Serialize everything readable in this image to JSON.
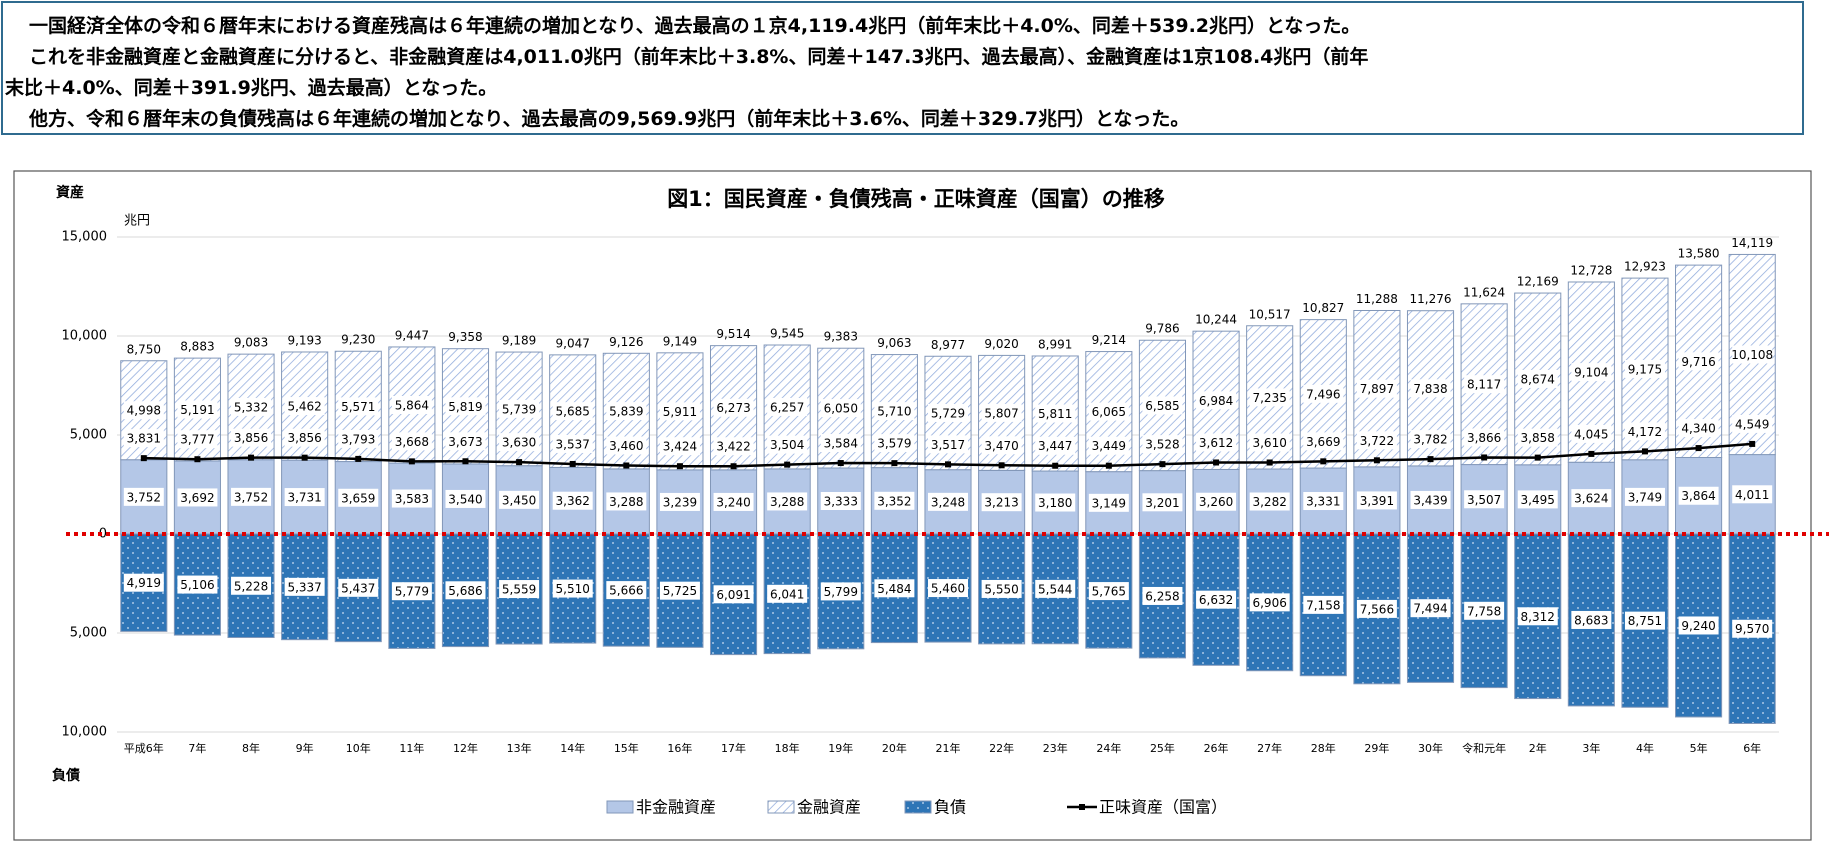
{
  "text_box": {
    "lines": [
      "一国経済全体の令和６暦年末における資産残高は６年連続の増加となり、過去最高の１京4,119.4兆円（前年末比＋4.0%、同差＋539.2兆円）となった。",
      "これを非金融資産と金融資産に分けると、非金融資産は4,011.0兆円（前年末比＋3.8%、同差＋147.3兆円、過去最高）、金融資産は1京108.4兆円（前年",
      "末比＋4.0%、同差＋391.9兆円、過去最高）となった。",
      "他方、令和６暦年末の負債残高は６年連続の増加となり、過去最高の9,569.9兆円（前年末比＋3.6%、同差＋329.7兆円）となった。"
    ]
  },
  "chart_data": {
    "type": "bar",
    "stacked": true,
    "title": "図1：国民資産・負債残高・正味資産（国富）の推移",
    "y_label": "資産",
    "y_unit": "兆円",
    "y2_label": "負債",
    "categories": [
      "平成6年",
      "7年",
      "8年",
      "9年",
      "10年",
      "11年",
      "12年",
      "13年",
      "14年",
      "15年",
      "16年",
      "17年",
      "18年",
      "19年",
      "20年",
      "21年",
      "22年",
      "23年",
      "24年",
      "25年",
      "26年",
      "27年",
      "28年",
      "29年",
      "30年",
      "令和元年",
      "2年",
      "3年",
      "4年",
      "5年",
      "6年"
    ],
    "series": [
      {
        "name": "非金融資産",
        "color": "#b4c7e7",
        "pattern": "solid",
        "values": [
          3752,
          3692,
          3752,
          3731,
          3659,
          3583,
          3540,
          3450,
          3362,
          3288,
          3239,
          3240,
          3288,
          3333,
          3352,
          3248,
          3213,
          3180,
          3149,
          3201,
          3260,
          3282,
          3331,
          3391,
          3439,
          3507,
          3495,
          3624,
          3749,
          3864,
          4011
        ],
        "value_labels": [
          "3,752",
          "3,692",
          "3,752",
          "3,731",
          "3,659",
          "3,583",
          "3,540",
          "3,450",
          "3,362",
          "3,288",
          "3,239",
          "3,240",
          "3,288",
          "3,333",
          "3,352",
          "3,248",
          "3,213",
          "3,180",
          "3,149",
          "3,201",
          "3,260",
          "3,282",
          "3,331",
          "3,391",
          "3,439",
          "3,507",
          "3,495",
          "3,624",
          "3,749",
          "3,864",
          "4,011"
        ]
      },
      {
        "name": "金融資産",
        "color": "#8faadc",
        "pattern": "hatch",
        "values": [
          4998,
          5191,
          5332,
          5462,
          5571,
          5864,
          5819,
          5739,
          5685,
          5839,
          5911,
          6273,
          6257,
          6050,
          5710,
          5729,
          5807,
          5811,
          6065,
          6585,
          6984,
          7235,
          7496,
          7897,
          7838,
          8117,
          8674,
          9104,
          9175,
          9716,
          10108
        ],
        "value_labels": [
          "4,998",
          "5,191",
          "5,332",
          "5,462",
          "5,571",
          "5,864",
          "5,819",
          "5,739",
          "5,685",
          "5,839",
          "5,911",
          "6,273",
          "6,257",
          "6,050",
          "5,710",
          "5,729",
          "5,807",
          "5,811",
          "6,065",
          "6,585",
          "6,984",
          "7,235",
          "7,496",
          "7,897",
          "7,838",
          "8,117",
          "8,674",
          "9,104",
          "9,175",
          "9,716",
          "10,108"
        ]
      },
      {
        "name": "負債",
        "color": "#2e75b6",
        "pattern": "dots",
        "axis": "y2",
        "values": [
          4919,
          5106,
          5228,
          5337,
          5437,
          5779,
          5686,
          5559,
          5510,
          5666,
          5725,
          6091,
          6041,
          5799,
          5484,
          5460,
          5550,
          5544,
          5765,
          6258,
          6632,
          6906,
          7158,
          7566,
          7494,
          7758,
          8312,
          8683,
          8751,
          9240,
          9570
        ],
        "value_labels": [
          "4,919",
          "5,106",
          "5,228",
          "5,337",
          "5,437",
          "5,779",
          "5,686",
          "5,559",
          "5,510",
          "5,666",
          "5,725",
          "6,091",
          "6,041",
          "5,799",
          "5,484",
          "5,460",
          "5,550",
          "5,544",
          "5,765",
          "6,258",
          "6,632",
          "6,906",
          "7,158",
          "7,566",
          "7,494",
          "7,758",
          "8,312",
          "8,683",
          "8,751",
          "9,240",
          "9,570"
        ]
      },
      {
        "name": "正味資産（国富）",
        "type": "line",
        "color": "#000000",
        "values": [
          3831,
          3777,
          3856,
          3856,
          3793,
          3668,
          3673,
          3630,
          3537,
          3460,
          3424,
          3422,
          3504,
          3584,
          3579,
          3517,
          3470,
          3447,
          3449,
          3528,
          3612,
          3610,
          3669,
          3722,
          3782,
          3866,
          3858,
          4045,
          4172,
          4340,
          4549
        ],
        "value_labels": [
          "3,831",
          "3,777",
          "3,856",
          "3,856",
          "3,793",
          "3,668",
          "3,673",
          "3,630",
          "3,537",
          "3,460",
          "3,424",
          "3,422",
          "3,504",
          "3,584",
          "3,579",
          "3,517",
          "3,470",
          "3,447",
          "3,449",
          "3,528",
          "3,612",
          "3,610",
          "3,669",
          "3,722",
          "3,782",
          "3,866",
          "3,858",
          "4,045",
          "4,172",
          "4,340",
          "4,549"
        ]
      }
    ],
    "totals": {
      "values": [
        8750,
        8883,
        9083,
        9193,
        9230,
        9447,
        9358,
        9189,
        9047,
        9126,
        9149,
        9514,
        9545,
        9383,
        9063,
        8977,
        9020,
        8991,
        9214,
        9786,
        10244,
        10517,
        10827,
        11288,
        11276,
        11624,
        12169,
        12728,
        12923,
        13580,
        14119
      ],
      "value_labels": [
        "8,750",
        "8,883",
        "9,083",
        "9,193",
        "9,230",
        "9,447",
        "9,358",
        "9,189",
        "9,047",
        "9,126",
        "9,149",
        "9,514",
        "9,545",
        "9,383",
        "9,063",
        "8,977",
        "9,020",
        "8,991",
        "9,214",
        "9,786",
        "10,244",
        "10,517",
        "10,827",
        "11,288",
        "11,276",
        "11,624",
        "12,169",
        "12,728",
        "12,923",
        "13,580",
        "14,119"
      ]
    },
    "ylim": [
      -10000,
      15000
    ],
    "yticks": [
      0,
      {
        "value": 5000,
        "label": "5,000"
      },
      {
        "value": 10000,
        "label": "10,000"
      },
      {
        "value": 15000,
        "label": "15,000"
      }
    ],
    "y2lim": [
      10000,
      -15000
    ],
    "y2ticks": [
      {
        "value": 5000,
        "label": "5,000"
      },
      {
        "value": 10000,
        "label": "10,000"
      }
    ],
    "grid": true,
    "zero_line_color": "#e00000",
    "legend": "bottom"
  }
}
